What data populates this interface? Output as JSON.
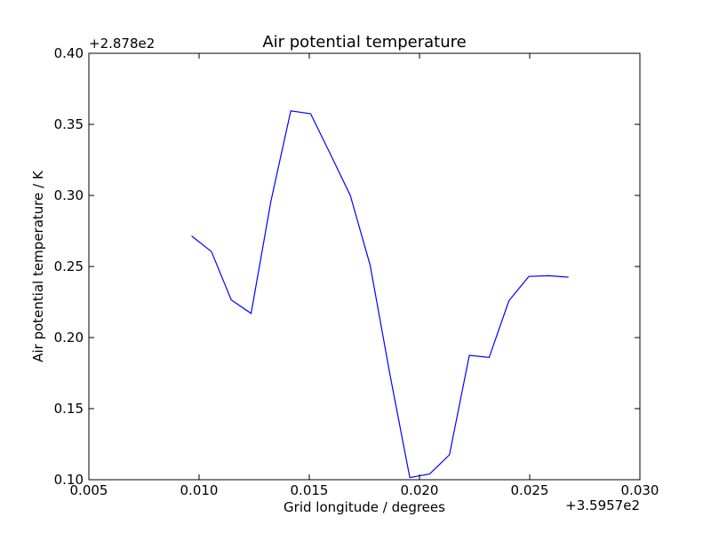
{
  "chart_data": {
    "type": "line",
    "title": "Air potential temperature",
    "xlabel": "Grid longitude / degrees",
    "ylabel": "Air potential temperature / K",
    "x_offset_label": "+3.5957e2",
    "y_offset_label": "+2.878e2",
    "xlim": [
      0.005,
      0.03
    ],
    "ylim": [
      0.1,
      0.4
    ],
    "xticks": [
      0.005,
      0.01,
      0.015,
      0.02,
      0.025,
      0.03
    ],
    "xtick_labels": [
      "0.005",
      "0.010",
      "0.015",
      "0.020",
      "0.025",
      "0.030"
    ],
    "yticks": [
      0.1,
      0.15,
      0.2,
      0.25,
      0.3,
      0.35,
      0.4
    ],
    "ytick_labels": [
      "0.10",
      "0.15",
      "0.20",
      "0.25",
      "0.30",
      "0.35",
      "0.40"
    ],
    "grid": false,
    "line_color": "#0000ff",
    "series": [
      {
        "x": [
          0.00966,
          0.01056,
          0.01146,
          0.01236,
          0.01326,
          0.01416,
          0.01506,
          0.01596,
          0.01686,
          0.01776,
          0.01866,
          0.01956,
          0.02046,
          0.02136,
          0.02226,
          0.02316,
          0.02406,
          0.02496,
          0.02586,
          0.02676
        ],
        "y": [
          0.2715,
          0.2605,
          0.2265,
          0.217,
          0.296,
          0.3595,
          0.3575,
          0.329,
          0.3,
          0.251,
          0.174,
          0.1015,
          0.104,
          0.1175,
          0.1875,
          0.186,
          0.226,
          0.243,
          0.2435,
          0.2425
        ]
      }
    ]
  }
}
